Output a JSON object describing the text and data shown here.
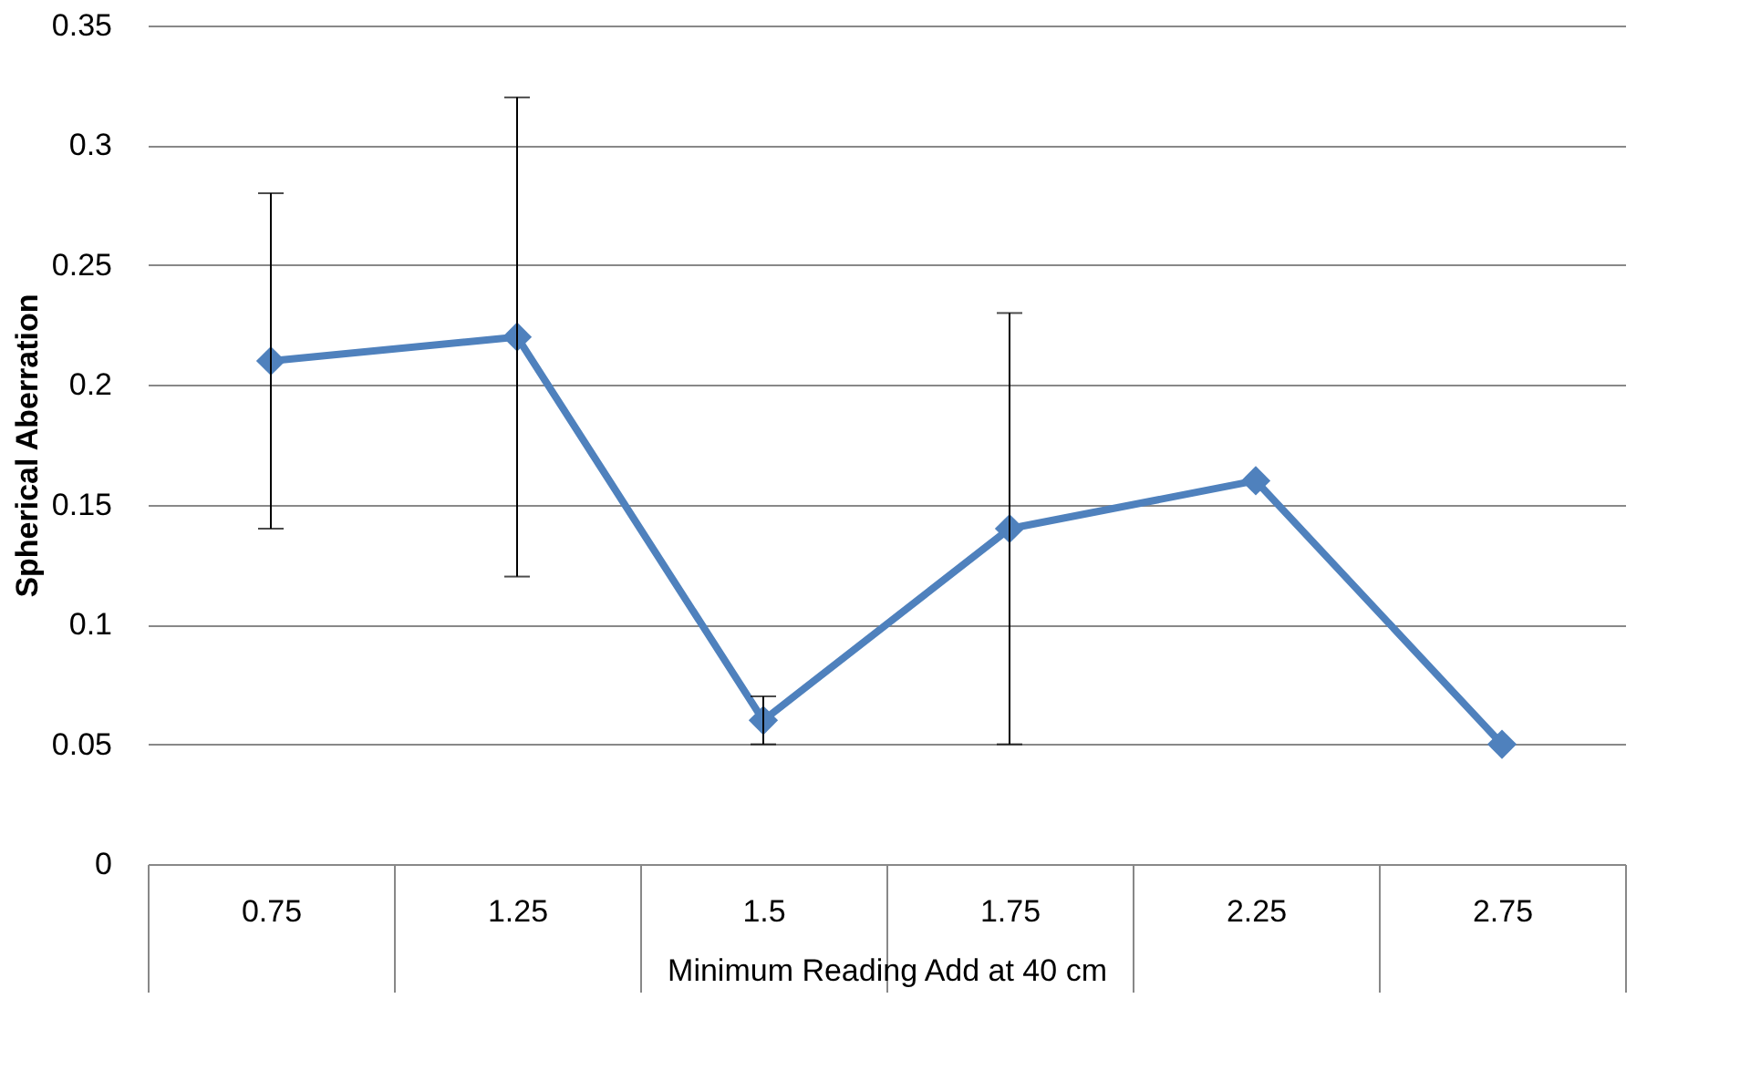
{
  "chart_data": {
    "type": "line",
    "xlabel": "Minimum Reading Add at 40 cm",
    "ylabel": "Spherical Aberration",
    "categories": [
      "0.75",
      "1.25",
      "1.5",
      "1.75",
      "2.25",
      "2.75"
    ],
    "series": [
      {
        "color": "#4f81bd",
        "values": [
          0.21,
          0.22,
          0.06,
          0.14,
          0.16,
          0.05
        ],
        "errors": [
          [
            0.14,
            0.28
          ],
          [
            0.12,
            0.32
          ],
          [
            0.05,
            0.07
          ],
          [
            0.05,
            0.23
          ],
          null,
          null
        ]
      }
    ],
    "ylim": [
      0,
      0.35
    ],
    "yticks": [
      0,
      0.05,
      0.1,
      0.15,
      0.2,
      0.25,
      0.3,
      0.35
    ],
    "grid": "y",
    "marker": "diamond",
    "line_style": "solid"
  }
}
